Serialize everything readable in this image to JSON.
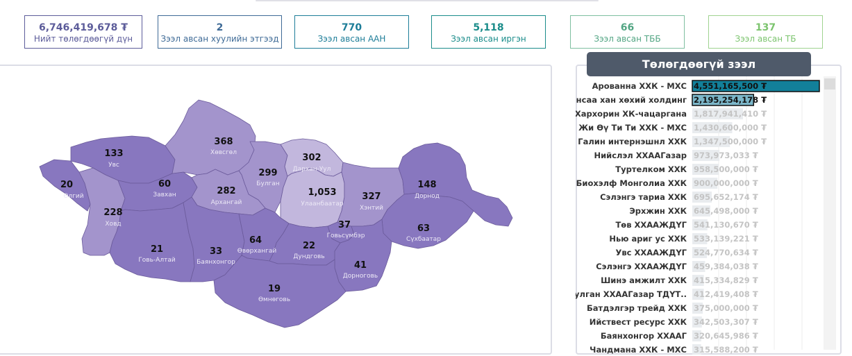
{
  "kpis": [
    {
      "value": "6,746,419,678 ₮",
      "label": "Нийт төлөгдөөгүй дүн",
      "color": "#5c5c9a",
      "border": "#5c5c9a"
    },
    {
      "value": "2",
      "label": "Зээл авсан хуулийн этгээд",
      "color": "#3e6a96",
      "border": "#3e6a96"
    },
    {
      "value": "770",
      "label": "Зээл авсан ААН",
      "color": "#1d7d98",
      "border": "#1d7d98"
    },
    {
      "value": "5,118",
      "label": "Зээл авсан иргэн",
      "color": "#1a8c8a",
      "border": "#1a8c8a"
    },
    {
      "value": "66",
      "label": "Зээл авсан ТББ",
      "color": "#52a583",
      "border": "#7ebfa0"
    },
    {
      "value": "137",
      "label": "Зээл авсан ТБ",
      "color": "#7cc46e",
      "border": "#9fd38f"
    }
  ],
  "list_title": "Төлөгдөөгүй зээл",
  "colors": {
    "bar_dark": "#12809a",
    "bar_light": "#7cb7ca",
    "bar_faint": "#e9ecef",
    "map_dark": "#8877bf",
    "map_mid": "#a394cc",
    "map_light": "#c2b7dd",
    "map_border": "#6b5b9b"
  },
  "loans": [
    {
      "name": "Арованна ХХК - МХС",
      "amount": 4551165500,
      "label": "4,551,165,500 ₮"
    },
    {
      "name": "Чансаа хан хөхий холдинг",
      "amount": 2195254178,
      "label": "2,195,254,178 ₮"
    },
    {
      "name": "Хархорин ХК-чацаргана",
      "amount": 1817941410,
      "label": "1,817,941,410 ₮"
    },
    {
      "name": "Жи Өү Ти Ти  ХХК - МХС",
      "amount": 1430600000,
      "label": "1,430,600,000 ₮"
    },
    {
      "name": "Галин интернэшнл ХХК",
      "amount": 1347500000,
      "label": "1,347,500,000 ₮"
    },
    {
      "name": "Нийслэл ХХААГазар",
      "amount": 973973033,
      "label": "973,973,033 ₮"
    },
    {
      "name": "Туртелком ХХК",
      "amount": 958500000,
      "label": "958,500,000 ₮"
    },
    {
      "name": "Биохэлф Монголиа ХХК",
      "amount": 900000000,
      "label": "900,000,000 ₮"
    },
    {
      "name": "Сэлэнгэ тариа ХХК",
      "amount": 695652174,
      "label": "695,652,174 ₮"
    },
    {
      "name": "Эрхжин ХХК",
      "amount": 645498000,
      "label": "645,498,000 ₮"
    },
    {
      "name": "Төв ХХААЖДҮГ",
      "amount": 541130670,
      "label": "541,130,670 ₮"
    },
    {
      "name": "Нью ариг ус ХХК",
      "amount": 533139221,
      "label": "533,139,221 ₮"
    },
    {
      "name": "Увс ХХААЖДҮГ",
      "amount": 524770634,
      "label": "524,770,634 ₮"
    },
    {
      "name": "Сэлэнгэ ХХААЖДҮГ",
      "amount": 459384038,
      "label": "459,384,038 ₮"
    },
    {
      "name": "Шинэ амжилт ХХК",
      "amount": 415334829,
      "label": "415,334,829 ₮"
    },
    {
      "name": "Булган ХХААГазар ТДҮТ..",
      "amount": 412419408,
      "label": "412,419,408 ₮"
    },
    {
      "name": "Батдэлгэр трейд ХХК",
      "amount": 375000000,
      "label": "375,000,000 ₮"
    },
    {
      "name": "Ийствест ресурс ХХК",
      "amount": 342503307,
      "label": "342,503,307 ₮"
    },
    {
      "name": "Баянхонгор ХХААГ",
      "amount": 320645986,
      "label": "320,645,986 ₮"
    },
    {
      "name": "Чандмана ХХК - МХС",
      "amount": 315588200,
      "label": "315,588,200 ₮"
    }
  ],
  "provinces": [
    {
      "name": "Өлгий",
      "count": "20",
      "shade": "dark"
    },
    {
      "name": "Увс",
      "count": "133",
      "shade": "dark"
    },
    {
      "name": "Ховд",
      "count": "228",
      "shade": "mid"
    },
    {
      "name": "Завхан",
      "count": "60",
      "shade": "dark"
    },
    {
      "name": "Хөвсгөл",
      "count": "368",
      "shade": "mid"
    },
    {
      "name": "Булган",
      "count": "299",
      "shade": "mid"
    },
    {
      "name": "Архангай",
      "count": "282",
      "shade": "mid"
    },
    {
      "name": "Дархан-Уул",
      "count": "302",
      "shade": "light"
    },
    {
      "name": "Улаанбаатар",
      "count": "1,053",
      "shade": "light"
    },
    {
      "name": "Хэнтий",
      "count": "327",
      "shade": "mid"
    },
    {
      "name": "Дорнод",
      "count": "148",
      "shade": "dark"
    },
    {
      "name": "Говь-Алтай",
      "count": "21",
      "shade": "dark"
    },
    {
      "name": "Баянхонгор",
      "count": "33",
      "shade": "dark"
    },
    {
      "name": "Өвөрхангай",
      "count": "64",
      "shade": "dark"
    },
    {
      "name": "Говьсүмбэр",
      "count": "37",
      "shade": "dark"
    },
    {
      "name": "Дундговь",
      "count": "22",
      "shade": "dark"
    },
    {
      "name": "Сүхбаатар",
      "count": "63",
      "shade": "dark"
    },
    {
      "name": "Дорноговь",
      "count": "41",
      "shade": "dark"
    },
    {
      "name": "Өмнөговь",
      "count": "19",
      "shade": "dark"
    }
  ]
}
